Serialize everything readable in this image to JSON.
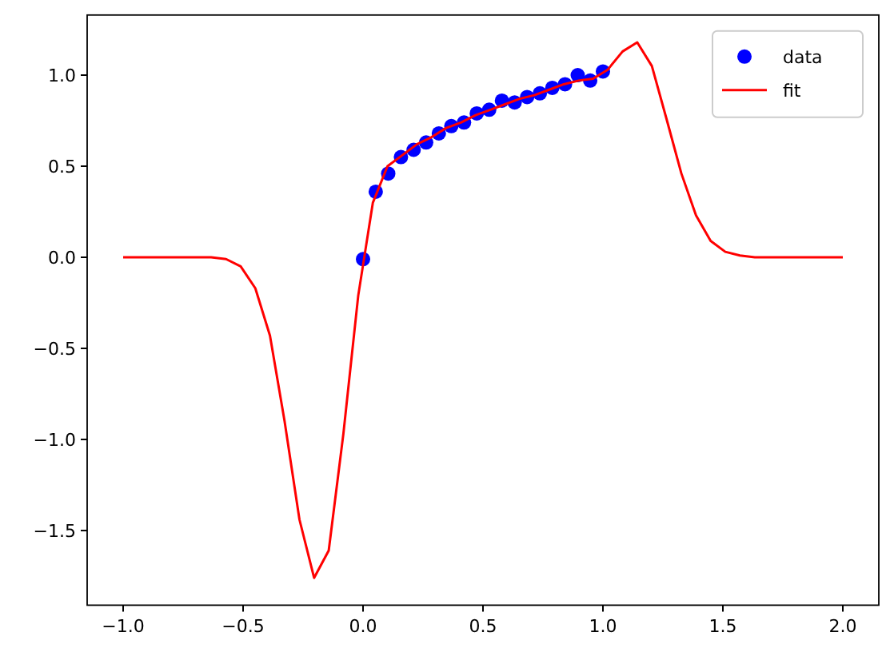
{
  "chart_data": {
    "type": "scatter",
    "xlim": [
      -1.15,
      2.15
    ],
    "ylim": [
      -1.91,
      1.33
    ],
    "xticks": [
      {
        "value": -1,
        "label": "−1.0"
      },
      {
        "value": -0.5,
        "label": "−0.5"
      },
      {
        "value": 0,
        "label": "0.0"
      },
      {
        "value": 0.5,
        "label": "0.5"
      },
      {
        "value": 1,
        "label": "1.0"
      },
      {
        "value": 1.5,
        "label": "1.5"
      },
      {
        "value": 2,
        "label": "2.0"
      }
    ],
    "yticks": [
      {
        "value": -1.5,
        "label": "−1.5"
      },
      {
        "value": -1,
        "label": "−1.0"
      },
      {
        "value": -0.5,
        "label": "−0.5"
      },
      {
        "value": 0,
        "label": "0.0"
      },
      {
        "value": 0.5,
        "label": "0.5"
      },
      {
        "value": 1,
        "label": "1.0"
      }
    ],
    "legend": "top right",
    "grid": false,
    "series": [
      {
        "name": "data",
        "marker": "circle",
        "color": "#0000ff",
        "x": [
          0,
          0.053,
          0.105,
          0.158,
          0.211,
          0.263,
          0.316,
          0.368,
          0.421,
          0.474,
          0.526,
          0.579,
          0.632,
          0.684,
          0.737,
          0.789,
          0.842,
          0.895,
          0.947,
          1
        ],
        "values": [
          -0.01,
          0.36,
          0.46,
          0.55,
          0.59,
          0.63,
          0.68,
          0.72,
          0.74,
          0.79,
          0.81,
          0.86,
          0.85,
          0.88,
          0.9,
          0.93,
          0.95,
          1.0,
          0.97,
          1.02
        ]
      },
      {
        "name": "fit",
        "type": "line",
        "marker": "none",
        "line_style": "solid",
        "color": "#ff0000",
        "x": [
          -1,
          -0.939,
          -0.878,
          -0.816,
          -0.755,
          -0.694,
          -0.633,
          -0.571,
          -0.51,
          -0.449,
          -0.388,
          -0.327,
          -0.265,
          -0.204,
          -0.143,
          -0.082,
          -0.02,
          0.041,
          0.102,
          0.163,
          0.224,
          0.286,
          0.347,
          0.408,
          0.469,
          0.531,
          0.592,
          0.653,
          0.714,
          0.776,
          0.837,
          0.898,
          0.959,
          1.02,
          1.082,
          1.143,
          1.204,
          1.265,
          1.327,
          1.388,
          1.449,
          1.51,
          1.571,
          1.633,
          1.694,
          1.755,
          1.816,
          1.878,
          1.939,
          2
        ],
        "values": [
          0,
          0,
          0,
          0,
          0,
          0,
          0,
          -0.01,
          -0.05,
          -0.17,
          -0.43,
          -0.9,
          -1.44,
          -1.76,
          -1.61,
          -0.97,
          -0.21,
          0.3,
          0.5,
          0.56,
          0.62,
          0.66,
          0.71,
          0.74,
          0.78,
          0.81,
          0.84,
          0.87,
          0.89,
          0.92,
          0.95,
          0.97,
          0.98,
          1.03,
          1.13,
          1.18,
          1.05,
          0.76,
          0.46,
          0.23,
          0.09,
          0.03,
          0.01,
          0,
          0,
          0,
          0,
          0,
          0,
          0
        ]
      }
    ]
  }
}
